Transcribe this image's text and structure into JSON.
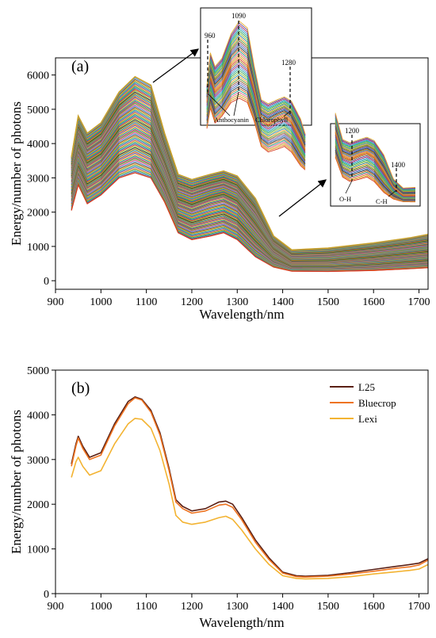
{
  "chart_data": [
    {
      "panel_label": "(a)",
      "type": "line",
      "xlabel": "Wavelength/nm",
      "ylabel": "Energy/number of photons",
      "xlim": [
        900,
        1720
      ],
      "ylim": [
        -250,
        6500
      ],
      "xticks": [
        "900",
        "1000",
        "1100",
        "1200",
        "1300",
        "1400",
        "1500",
        "1600",
        "1700"
      ],
      "yticks": [
        "0",
        "1000",
        "2000",
        "3000",
        "4000",
        "5000",
        "6000"
      ],
      "x": [
        935,
        950,
        970,
        1000,
        1040,
        1075,
        1110,
        1140,
        1170,
        1200,
        1240,
        1270,
        1300,
        1340,
        1380,
        1420,
        1500,
        1600,
        1680,
        1720
      ],
      "series_envelope": {
        "max": [
          3600,
          4800,
          4300,
          4600,
          5500,
          5950,
          5700,
          4300,
          3100,
          2950,
          3100,
          3200,
          3050,
          2400,
          1300,
          900,
          950,
          1100,
          1250,
          1350
        ],
        "typical": [
          3000,
          3900,
          3350,
          3600,
          4300,
          4550,
          4300,
          3400,
          2300,
          2150,
          2350,
          2450,
          2250,
          1600,
          900,
          550,
          550,
          650,
          750,
          800
        ],
        "min": [
          2050,
          2800,
          2250,
          2500,
          3000,
          3150,
          3000,
          2300,
          1400,
          1200,
          1300,
          1400,
          1200,
          700,
          400,
          280,
          270,
          300,
          350,
          380
        ]
      },
      "inset_1": {
        "peak_labels": [
          "960",
          "1090",
          "1280"
        ],
        "band_labels": [
          "Anthocyanin",
          "Chlorophyll"
        ]
      },
      "inset_2": {
        "peak_labels": [
          "1200",
          "1400"
        ],
        "band_labels": [
          "O-H",
          "C-H"
        ]
      },
      "colors": [
        "#d63b1f",
        "#2f6fb3",
        "#3aa95a",
        "#e48a1a",
        "#7a5aa8",
        "#26a7a0",
        "#c9a227",
        "#8b5a2b",
        "#4c8fd6",
        "#e05a8c",
        "#5c9e2e",
        "#b03060",
        "#1f9e89",
        "#f0a030",
        "#6b4fa0",
        "#cf6b20",
        "#2e86ab",
        "#9c8d20",
        "#333333",
        "#8fbc3a"
      ],
      "series_count_drawn": 70
    },
    {
      "panel_label": "(b)",
      "type": "line",
      "xlabel": "Wavelength/nm",
      "ylabel": "Energy/number of photons",
      "xlim": [
        900,
        1720
      ],
      "ylim": [
        0,
        5000
      ],
      "xticks": [
        "900",
        "1000",
        "1100",
        "1200",
        "1300",
        "1400",
        "1500",
        "1600",
        "1700"
      ],
      "yticks": [
        "0",
        "1000",
        "2000",
        "3000",
        "4000",
        "5000"
      ],
      "x": [
        935,
        945,
        950,
        960,
        975,
        1000,
        1030,
        1060,
        1075,
        1090,
        1110,
        1130,
        1150,
        1165,
        1180,
        1200,
        1230,
        1260,
        1275,
        1290,
        1310,
        1340,
        1370,
        1400,
        1430,
        1450,
        1500,
        1550,
        1600,
        1650,
        1680,
        1700,
        1720
      ],
      "series": [
        {
          "name": "L25",
          "color": "#5a1f14",
          "values": [
            2900,
            3350,
            3520,
            3300,
            3050,
            3150,
            3800,
            4300,
            4400,
            4350,
            4100,
            3600,
            2800,
            2100,
            1950,
            1850,
            1900,
            2050,
            2070,
            2000,
            1700,
            1200,
            800,
            480,
            400,
            390,
            410,
            470,
            540,
            610,
            650,
            680,
            780
          ]
        },
        {
          "name": "Bluecrop",
          "color": "#ee7320",
          "values": [
            2850,
            3300,
            3480,
            3250,
            3000,
            3100,
            3750,
            4250,
            4380,
            4330,
            4060,
            3550,
            2750,
            2050,
            1900,
            1800,
            1850,
            1980,
            2000,
            1930,
            1650,
            1150,
            760,
            460,
            380,
            370,
            390,
            440,
            500,
            570,
            600,
            640,
            750
          ]
        },
        {
          "name": "Lexi",
          "color": "#f3b331",
          "values": [
            2600,
            2950,
            3050,
            2850,
            2650,
            2750,
            3350,
            3800,
            3920,
            3900,
            3700,
            3200,
            2450,
            1750,
            1600,
            1550,
            1600,
            1700,
            1730,
            1660,
            1420,
            1000,
            650,
            400,
            340,
            330,
            340,
            380,
            440,
            490,
            520,
            550,
            650
          ]
        }
      ]
    }
  ]
}
